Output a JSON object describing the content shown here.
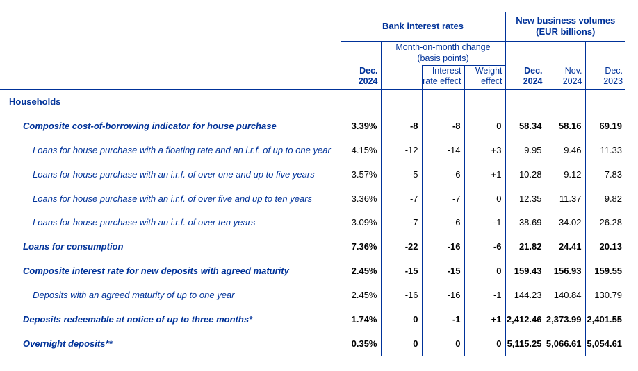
{
  "colors": {
    "navy": "#003299",
    "value_text": "#000000",
    "background": "#ffffff"
  },
  "header": {
    "group_bank": "Bank interest rates",
    "group_volumes": [
      "New business volumes",
      "(EUR billions)"
    ],
    "subgroup_mom": [
      "Month-on-month change",
      "(basis points)"
    ],
    "columns": {
      "rate_period": [
        "Dec.",
        "2024"
      ],
      "interest_rate_effect": [
        "Interest",
        "rate effect"
      ],
      "weight_effect": [
        "Weight",
        "effect"
      ],
      "vol_dec_2024": [
        "Dec.",
        "2024"
      ],
      "vol_nov_2024": [
        "Nov.",
        "2024"
      ],
      "vol_dec_2023": [
        "Dec.",
        "2023"
      ]
    }
  },
  "rows": [
    {
      "label": "Households",
      "level": 0,
      "emphasis": "section",
      "values": null
    },
    {
      "label": "Composite cost-of-borrowing indicator for house purchase",
      "level": 1,
      "emphasis": "bold-italic",
      "values": [
        "3.39%",
        "-8",
        "-8",
        "0",
        "58.34",
        "58.16",
        "69.19"
      ]
    },
    {
      "label": "Loans for house purchase with a floating rate and an i.r.f. of up to one year",
      "level": 2,
      "emphasis": "italic",
      "values": [
        "4.15%",
        "-12",
        "-14",
        "+3",
        "9.95",
        "9.46",
        "11.33"
      ]
    },
    {
      "label": "Loans for house purchase with an i.r.f. of over one and up to five years",
      "level": 2,
      "emphasis": "italic",
      "values": [
        "3.57%",
        "-5",
        "-6",
        "+1",
        "10.28",
        "9.12",
        "7.83"
      ]
    },
    {
      "label": "Loans for house purchase with an i.r.f. of over five and up to ten years",
      "level": 2,
      "emphasis": "italic",
      "values": [
        "3.36%",
        "-7",
        "-7",
        "0",
        "12.35",
        "11.37",
        "9.82"
      ]
    },
    {
      "label": "Loans for house purchase with an i.r.f. of over ten years",
      "level": 2,
      "emphasis": "italic",
      "values": [
        "3.09%",
        "-7",
        "-6",
        "-1",
        "38.69",
        "34.02",
        "26.28"
      ]
    },
    {
      "label": "Loans for consumption",
      "level": 1,
      "emphasis": "bold-italic",
      "values": [
        "7.36%",
        "-22",
        "-16",
        "-6",
        "21.82",
        "24.41",
        "20.13"
      ]
    },
    {
      "label": "Composite interest rate for new deposits with agreed maturity",
      "level": 1,
      "emphasis": "bold-italic",
      "values": [
        "2.45%",
        "-15",
        "-15",
        "0",
        "159.43",
        "156.93",
        "159.55"
      ]
    },
    {
      "label": "Deposits with an agreed maturity of up to one year",
      "level": 2,
      "emphasis": "italic",
      "values": [
        "2.45%",
        "-16",
        "-16",
        "-1",
        "144.23",
        "140.84",
        "130.79"
      ]
    },
    {
      "label": "Deposits redeemable at notice of up to three months*",
      "level": 1,
      "emphasis": "bold-italic",
      "values": [
        "1.74%",
        "0",
        "-1",
        "+1",
        "2,412.46",
        "2,373.99",
        "2,401.55"
      ]
    },
    {
      "label": "Overnight deposits**",
      "level": 1,
      "emphasis": "bold-italic",
      "values": [
        "0.35%",
        "0",
        "0",
        "0",
        "5,115.25",
        "5,066.61",
        "5,054.61"
      ]
    }
  ]
}
